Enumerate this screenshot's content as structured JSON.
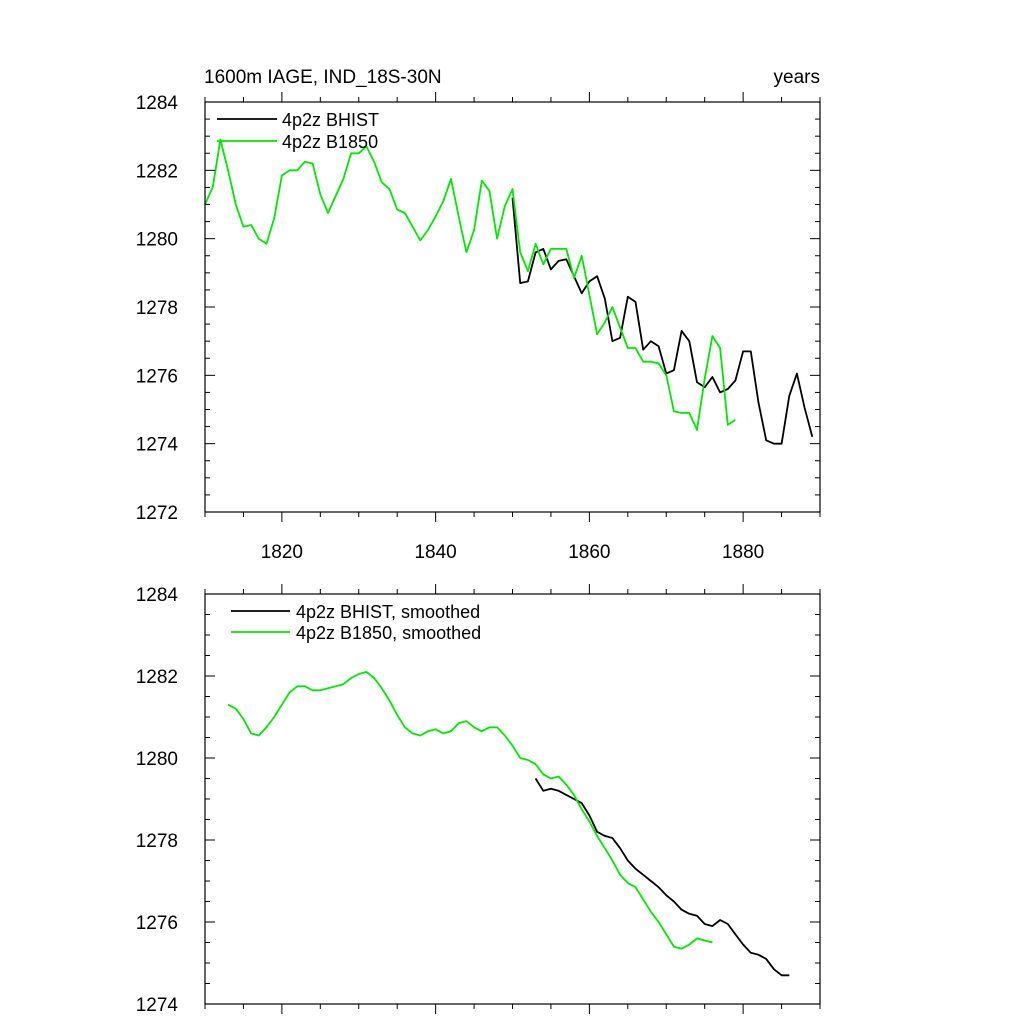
{
  "colors": {
    "bhist": "#000000",
    "b1850": "#00e600",
    "frame": "#000000",
    "background": "#ffffff"
  },
  "chart_data": [
    {
      "type": "line",
      "title": "1600m IAGE, IND_18S-30N",
      "units_label": "years",
      "xlim": [
        1810,
        1890
      ],
      "ylim": [
        1272,
        1284
      ],
      "x_ticks": [
        1820,
        1840,
        1860,
        1880
      ],
      "x_tick_labels": [
        "1820",
        "1840",
        "1860",
        "1880"
      ],
      "y_ticks": [
        1272,
        1274,
        1276,
        1278,
        1280,
        1282,
        1284
      ],
      "y_tick_labels": [
        "1272",
        "1274",
        "1276",
        "1278",
        "1280",
        "1282",
        "1284"
      ],
      "legend": {
        "placement": "top-left",
        "entries": [
          "4p2z BHIST",
          "4p2z B1850"
        ]
      },
      "series": [
        {
          "name": "4p2z BHIST",
          "color": "#000000",
          "x": [
            1850,
            1851,
            1852,
            1853,
            1854,
            1855,
            1856,
            1857,
            1858,
            1859,
            1860,
            1861,
            1862,
            1863,
            1864,
            1865,
            1866,
            1867,
            1868,
            1869,
            1870,
            1871,
            1872,
            1873,
            1874,
            1875,
            1876,
            1877,
            1878,
            1879,
            1880,
            1881,
            1882,
            1883,
            1884,
            1885,
            1886,
            1887,
            1888,
            1889
          ],
          "y": [
            1281.2,
            1278.7,
            1278.75,
            1279.6,
            1279.7,
            1279.1,
            1279.35,
            1279.4,
            1278.9,
            1278.4,
            1278.75,
            1278.9,
            1278.25,
            1277.0,
            1277.1,
            1278.3,
            1278.15,
            1276.75,
            1277.0,
            1276.85,
            1276.05,
            1276.15,
            1277.3,
            1277.0,
            1275.8,
            1275.65,
            1275.95,
            1275.5,
            1275.6,
            1275.85,
            1276.7,
            1276.7,
            1275.2,
            1274.1,
            1274.0,
            1274.0,
            1275.4,
            1276.05,
            1275.05,
            1274.2
          ]
        },
        {
          "name": "4p2z B1850",
          "color": "#00e600",
          "x": [
            1810,
            1811,
            1812,
            1813,
            1814,
            1815,
            1816,
            1817,
            1818,
            1819,
            1820,
            1821,
            1822,
            1823,
            1824,
            1825,
            1826,
            1827,
            1828,
            1829,
            1830,
            1831,
            1832,
            1833,
            1834,
            1835,
            1836,
            1837,
            1838,
            1839,
            1840,
            1841,
            1842,
            1843,
            1844,
            1845,
            1846,
            1847,
            1848,
            1849,
            1850,
            1851,
            1852,
            1853,
            1854,
            1855,
            1856,
            1857,
            1858,
            1859,
            1860,
            1861,
            1862,
            1863,
            1864,
            1865,
            1866,
            1867,
            1868,
            1869,
            1870,
            1871,
            1872,
            1873,
            1874,
            1875,
            1876,
            1877,
            1878,
            1879
          ],
          "y": [
            1281.0,
            1281.5,
            1282.9,
            1282.0,
            1281.0,
            1280.35,
            1280.4,
            1280.0,
            1279.85,
            1280.6,
            1281.85,
            1282.0,
            1282.0,
            1282.25,
            1282.2,
            1281.3,
            1280.75,
            1281.25,
            1281.75,
            1282.5,
            1282.5,
            1282.7,
            1282.25,
            1281.65,
            1281.45,
            1280.85,
            1280.75,
            1280.35,
            1279.95,
            1280.25,
            1280.65,
            1281.1,
            1281.75,
            1280.65,
            1279.6,
            1280.25,
            1281.7,
            1281.4,
            1280.0,
            1280.95,
            1281.45,
            1279.6,
            1279.05,
            1279.85,
            1279.25,
            1279.7,
            1279.7,
            1279.7,
            1278.85,
            1279.5,
            1278.35,
            1277.2,
            1277.55,
            1278.0,
            1277.4,
            1276.8,
            1276.8,
            1276.4,
            1276.4,
            1276.35,
            1276.0,
            1274.95,
            1274.9,
            1274.9,
            1274.4,
            1275.9,
            1277.15,
            1276.8,
            1274.55,
            1274.7
          ]
        }
      ]
    },
    {
      "type": "line",
      "title": "",
      "xlim": [
        1810,
        1890
      ],
      "ylim": [
        1274,
        1284
      ],
      "x_ticks": [
        1820,
        1840,
        1860,
        1880
      ],
      "x_tick_labels": [],
      "y_ticks": [
        1274,
        1276,
        1278,
        1280,
        1282,
        1284
      ],
      "y_tick_labels": [
        "1274",
        "1276",
        "1278",
        "1280",
        "1282",
        "1284"
      ],
      "legend": {
        "placement": "top-left",
        "entries": [
          "4p2z BHIST, smoothed",
          "4p2z B1850, smoothed"
        ]
      },
      "series": [
        {
          "name": "4p2z BHIST, smoothed",
          "color": "#000000",
          "x": [
            1853,
            1854,
            1855,
            1856,
            1857,
            1858,
            1859,
            1860,
            1861,
            1862,
            1863,
            1864,
            1865,
            1866,
            1867,
            1868,
            1869,
            1870,
            1871,
            1872,
            1873,
            1874,
            1875,
            1876,
            1877,
            1878,
            1879,
            1880,
            1881,
            1882,
            1883,
            1884,
            1885,
            1886
          ],
          "y": [
            1279.5,
            1279.2,
            1279.25,
            1279.2,
            1279.1,
            1279.0,
            1278.9,
            1278.6,
            1278.2,
            1278.1,
            1278.05,
            1277.8,
            1277.5,
            1277.3,
            1277.15,
            1277.0,
            1276.85,
            1276.65,
            1276.5,
            1276.3,
            1276.2,
            1276.15,
            1275.95,
            1275.9,
            1276.05,
            1275.95,
            1275.7,
            1275.45,
            1275.25,
            1275.2,
            1275.1,
            1274.85,
            1274.7,
            1274.7
          ]
        },
        {
          "name": "4p2z B1850, smoothed",
          "color": "#00e600",
          "x": [
            1813,
            1814,
            1815,
            1816,
            1817,
            1818,
            1819,
            1820,
            1821,
            1822,
            1823,
            1824,
            1825,
            1826,
            1827,
            1828,
            1829,
            1830,
            1831,
            1832,
            1833,
            1834,
            1835,
            1836,
            1837,
            1838,
            1839,
            1840,
            1841,
            1842,
            1843,
            1844,
            1845,
            1846,
            1847,
            1848,
            1849,
            1850,
            1851,
            1852,
            1853,
            1854,
            1855,
            1856,
            1857,
            1858,
            1859,
            1860,
            1861,
            1862,
            1863,
            1864,
            1865,
            1866,
            1867,
            1868,
            1869,
            1870,
            1871,
            1872,
            1873,
            1874,
            1875,
            1876
          ],
          "y": [
            1281.3,
            1281.2,
            1280.95,
            1280.6,
            1280.55,
            1280.75,
            1281.0,
            1281.3,
            1281.6,
            1281.75,
            1281.75,
            1281.65,
            1281.65,
            1281.7,
            1281.75,
            1281.8,
            1281.95,
            1282.05,
            1282.1,
            1281.95,
            1281.7,
            1281.4,
            1281.05,
            1280.75,
            1280.6,
            1280.55,
            1280.65,
            1280.7,
            1280.6,
            1280.65,
            1280.85,
            1280.9,
            1280.75,
            1280.65,
            1280.75,
            1280.75,
            1280.55,
            1280.3,
            1280.0,
            1279.95,
            1279.85,
            1279.6,
            1279.5,
            1279.55,
            1279.35,
            1279.1,
            1278.75,
            1278.45,
            1278.1,
            1277.8,
            1277.5,
            1277.15,
            1276.95,
            1276.85,
            1276.55,
            1276.25,
            1276.0,
            1275.7,
            1275.4,
            1275.35,
            1275.45,
            1275.6,
            1275.55,
            1275.5
          ]
        }
      ]
    }
  ]
}
